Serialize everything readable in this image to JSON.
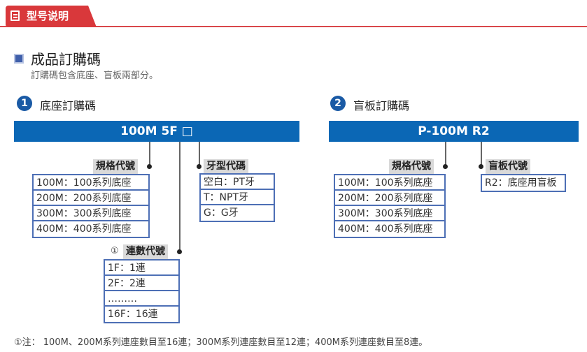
{
  "header": {
    "tab_label": "型号说明",
    "icon": "document-icon",
    "accent": "#d9383b"
  },
  "section": {
    "title": "成品訂購碼",
    "subtitle": "訂購碼包含底座、盲板兩部分。"
  },
  "base": {
    "number": "1",
    "title": "底座訂購碼",
    "code": "100M 5F □",
    "spec": {
      "label": "規格代號",
      "rows": [
        "100M：100系列底座",
        "200M：200系列底座",
        "300M：300系列底座",
        "400M：400系列底座"
      ]
    },
    "thread": {
      "label": "牙型代碼",
      "rows": [
        "空白：PT牙",
        "T：NPT牙",
        "G：G牙"
      ]
    },
    "count": {
      "marker": "①",
      "label": "連數代號",
      "rows": [
        "1F：1連",
        "2F：2連",
        "………",
        "16F：16連"
      ]
    }
  },
  "blank": {
    "number": "2",
    "title": "盲板訂購碼",
    "code": "P-100M R2",
    "spec": {
      "label": "規格代號",
      "rows": [
        "100M：100系列底座",
        "200M：200系列底座",
        "300M：300系列底座",
        "400M：400系列底座"
      ]
    },
    "plate": {
      "label": "盲板代號",
      "rows": [
        "R2：底座用盲板"
      ]
    }
  },
  "note": "①注： 100M、200M系列連座數目至16連；300M系列連座數目至12連；400M系列連座數目至8連。",
  "colors": {
    "bar": "#0b67b5",
    "table_border": "#4d6fb5"
  }
}
